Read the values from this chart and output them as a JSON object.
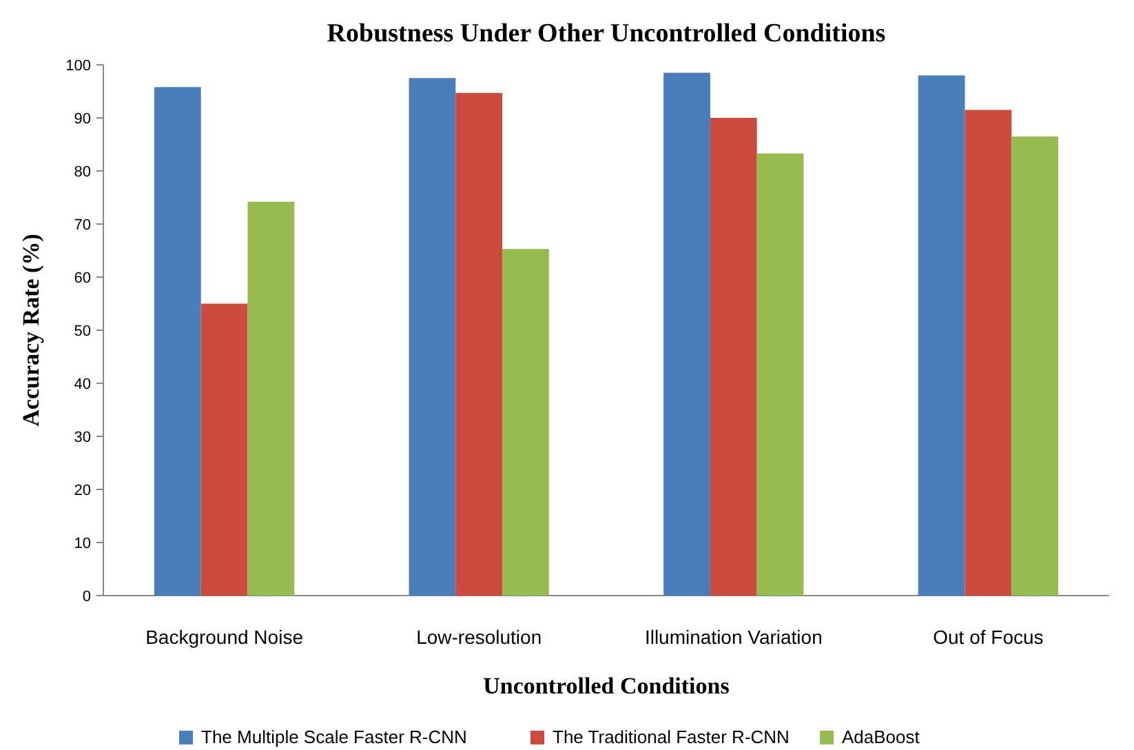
{
  "chart_data": {
    "type": "bar",
    "title": "Robustness Under Other Uncontrolled Conditions",
    "xlabel": "Uncontrolled Conditions",
    "ylabel": "Accuracy Rate (%)",
    "categories": [
      "Background Noise",
      "Low-resolution",
      "Illumination Variation",
      "Out of Focus"
    ],
    "series": [
      {
        "name": "The Multiple Scale Faster R-CNN",
        "color": "#4a7ebb",
        "values": [
          95.8,
          97.5,
          98.5,
          98
        ]
      },
      {
        "name": "The Traditional Faster R-CNN",
        "color": "#cd4b3c",
        "values": [
          55,
          94.7,
          90,
          91.5
        ]
      },
      {
        "name": "AdaBoost",
        "color": "#98bb4f",
        "values": [
          74.2,
          65.3,
          83.3,
          86.5
        ]
      }
    ],
    "ylim": [
      0,
      100
    ],
    "yticks": [
      0,
      10,
      20,
      30,
      40,
      50,
      60,
      70,
      80,
      90,
      100
    ],
    "grid": false,
    "legend": "bottom"
  }
}
